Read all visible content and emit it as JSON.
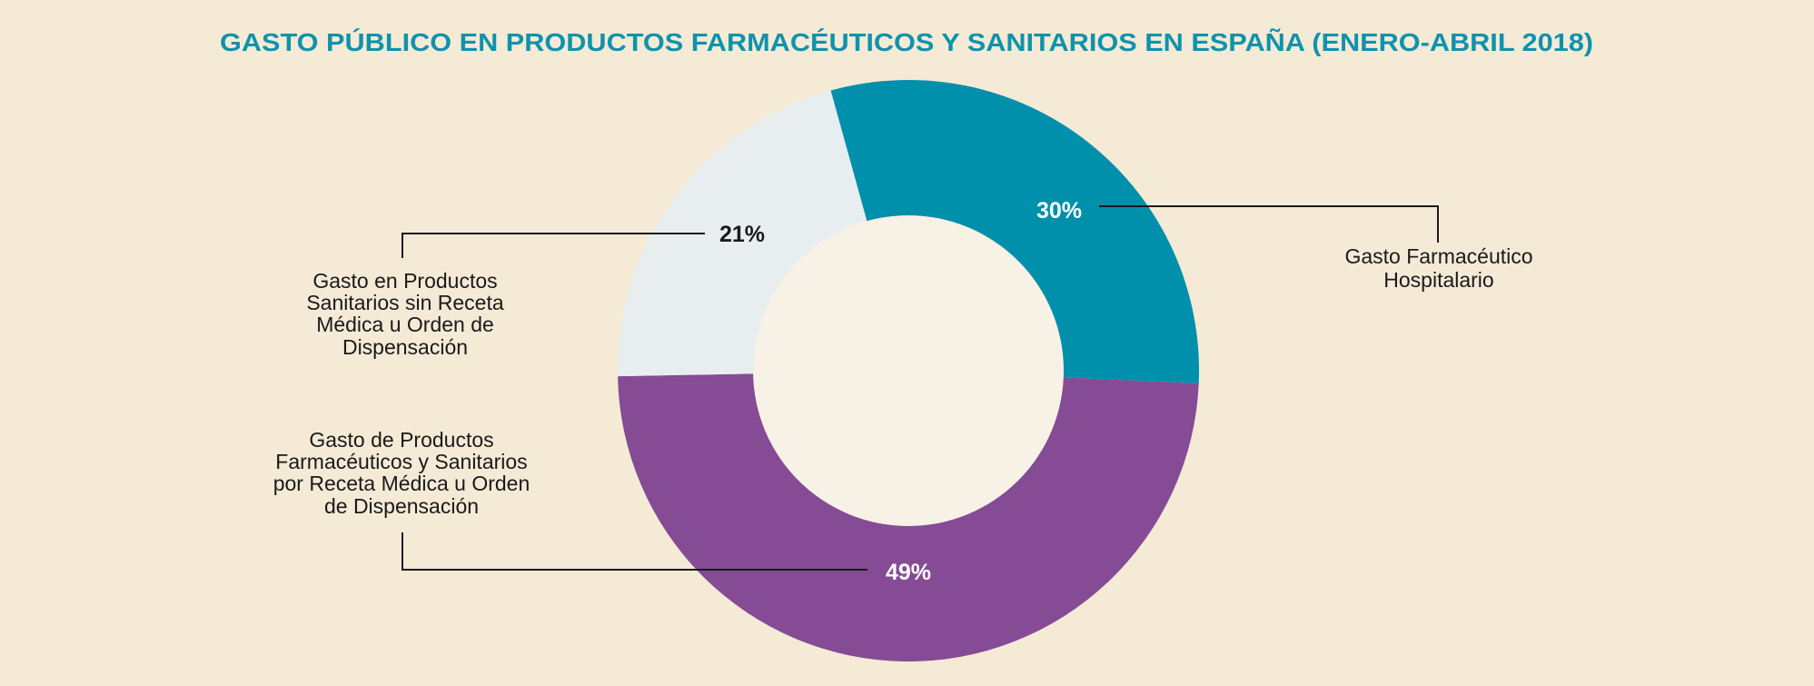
{
  "chart_data": {
    "type": "pie",
    "variant": "donut",
    "title": "GASTO PÚBLICO EN PRODUCTOS FARMACÉUTICOS Y SANITARIOS EN ESPAÑA (ENERO-ABRIL 2018)",
    "slices": [
      {
        "label": [
          "Gasto Farmacéutico",
          "Hospitalario"
        ],
        "value": 30,
        "value_label": "30%",
        "color": "#0090AC",
        "label_color": "#FFFFFF"
      },
      {
        "label": [
          "Gasto de Productos",
          "Farmacéuticos y Sanitarios",
          "por Receta Médica u Orden",
          "de Dispensación"
        ],
        "value": 49,
        "value_label": "49%",
        "color": "#854B95",
        "label_color": "#FFFFFF"
      },
      {
        "label": [
          "Gasto en Productos",
          "Sanitarios sin Receta",
          "Médica u Orden de",
          "Dispensación"
        ],
        "value": 21,
        "value_label": "21%",
        "color": "#E8EEF0",
        "label_color": "#1a1a1a"
      }
    ],
    "hole_color": "#F8F1E5",
    "background": "#F5EAD6",
    "legend": "none"
  }
}
